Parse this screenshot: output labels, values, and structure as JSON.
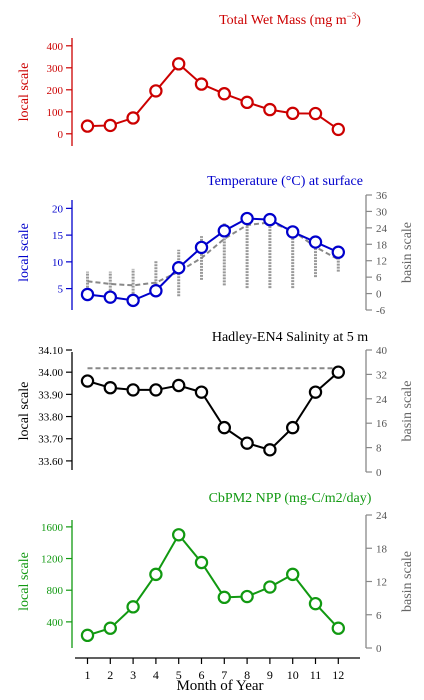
{
  "x_axis": {
    "label": "Month of Year",
    "ticks": [
      "1",
      "2",
      "3",
      "4",
      "5",
      "6",
      "7",
      "8",
      "9",
      "10",
      "11",
      "12"
    ]
  },
  "chart_data": [
    {
      "type": "line",
      "title_main": "Total Wet Mass (mg m",
      "title_sup": "−3",
      "title_end": ")",
      "color": "#cc0000",
      "ylabel": "local scale",
      "ylim": [
        -60,
        440
      ],
      "yticks": [
        "0",
        "100",
        "200",
        "300",
        "400"
      ],
      "ytick_values": [
        0,
        100,
        200,
        300,
        400
      ],
      "x": [
        1,
        2,
        3,
        4,
        5,
        6,
        7,
        8,
        9,
        10,
        11,
        12
      ],
      "values": [
        35,
        38,
        72,
        195,
        318,
        226,
        182,
        143,
        110,
        93,
        92,
        20
      ]
    },
    {
      "type": "line",
      "title_main": "Temperature (°C) at surface",
      "color": "#0000cc",
      "ylabel": "local scale",
      "ylabel_right": "basin scale",
      "ylim": [
        1,
        22.5
      ],
      "yticks": [
        "5",
        "10",
        "15",
        "20"
      ],
      "ytick_values": [
        5,
        10,
        15,
        20
      ],
      "ylim_right": [
        -6,
        36
      ],
      "yticks_right": [
        "36",
        "30",
        "24",
        "18",
        "12",
        "6",
        "0",
        "-6"
      ],
      "ytick_values_right": [
        36,
        30,
        24,
        18,
        12,
        6,
        0,
        -6
      ],
      "x": [
        1,
        2,
        3,
        4,
        5,
        6,
        7,
        8,
        9,
        10,
        11,
        12
      ],
      "values": [
        3.9,
        3.4,
        2.8,
        4.6,
        8.9,
        12.7,
        15.8,
        18.1,
        17.9,
        15.6,
        13.7,
        11.8
      ],
      "basin_mean": [
        4.5,
        3.5,
        3.0,
        4.0,
        8.0,
        13.0,
        20.0,
        25.0,
        26.0,
        23.0,
        17.0,
        12.5
      ],
      "basin_range": [
        [
          0,
          8
        ],
        [
          0,
          8
        ],
        [
          0,
          9
        ],
        [
          -1,
          12
        ],
        [
          -1,
          16
        ],
        [
          5,
          21
        ],
        [
          3,
          26
        ],
        [
          2,
          28
        ],
        [
          2,
          28
        ],
        [
          2,
          24
        ],
        [
          6,
          20
        ],
        [
          8,
          16
        ]
      ]
    },
    {
      "type": "line",
      "title_main": "Hadley-EN4 Salinity at 5 m",
      "color": "#000000",
      "ylabel": "local scale",
      "ylabel_right": "basin scale",
      "ylim": [
        33.55,
        34.1
      ],
      "yticks": [
        "34.10",
        "34.00",
        "33.90",
        "33.80",
        "33.70",
        "33.60"
      ],
      "ytick_values": [
        34.1,
        34.0,
        33.9,
        33.8,
        33.7,
        33.6
      ],
      "ylim_right": [
        0,
        40
      ],
      "yticks_right": [
        "40",
        "32",
        "24",
        "16",
        "8",
        "0"
      ],
      "ytick_values_right": [
        40,
        32,
        24,
        16,
        8,
        0
      ],
      "x": [
        1,
        2,
        3,
        4,
        5,
        6,
        7,
        8,
        9,
        10,
        11,
        12
      ],
      "values": [
        33.96,
        33.93,
        33.92,
        33.92,
        33.94,
        33.91,
        33.75,
        33.68,
        33.65,
        33.75,
        33.91,
        34.0
      ],
      "basin_mean": [
        34,
        34,
        34,
        34,
        34,
        34,
        34,
        34,
        34,
        34,
        34,
        34
      ]
    },
    {
      "type": "line",
      "title_main": "CbPM2 NPP (mg-C/m2/day)",
      "color": "#119911",
      "ylabel": "local scale",
      "ylabel_right": "basin scale",
      "ylim": [
        70,
        1750
      ],
      "yticks": [
        "1600",
        "1200",
        "800",
        "400"
      ],
      "ytick_values": [
        1600,
        1200,
        800,
        400
      ],
      "ylim_right": [
        0,
        24
      ],
      "yticks_right": [
        "24",
        "18",
        "12",
        "6",
        "0"
      ],
      "ytick_values_right": [
        24,
        18,
        12,
        6,
        0
      ],
      "x": [
        1,
        2,
        3,
        4,
        5,
        6,
        7,
        8,
        9,
        10,
        11,
        12
      ],
      "values": [
        230,
        320,
        590,
        1000,
        1500,
        1150,
        710,
        720,
        840,
        1000,
        630,
        320
      ]
    }
  ]
}
